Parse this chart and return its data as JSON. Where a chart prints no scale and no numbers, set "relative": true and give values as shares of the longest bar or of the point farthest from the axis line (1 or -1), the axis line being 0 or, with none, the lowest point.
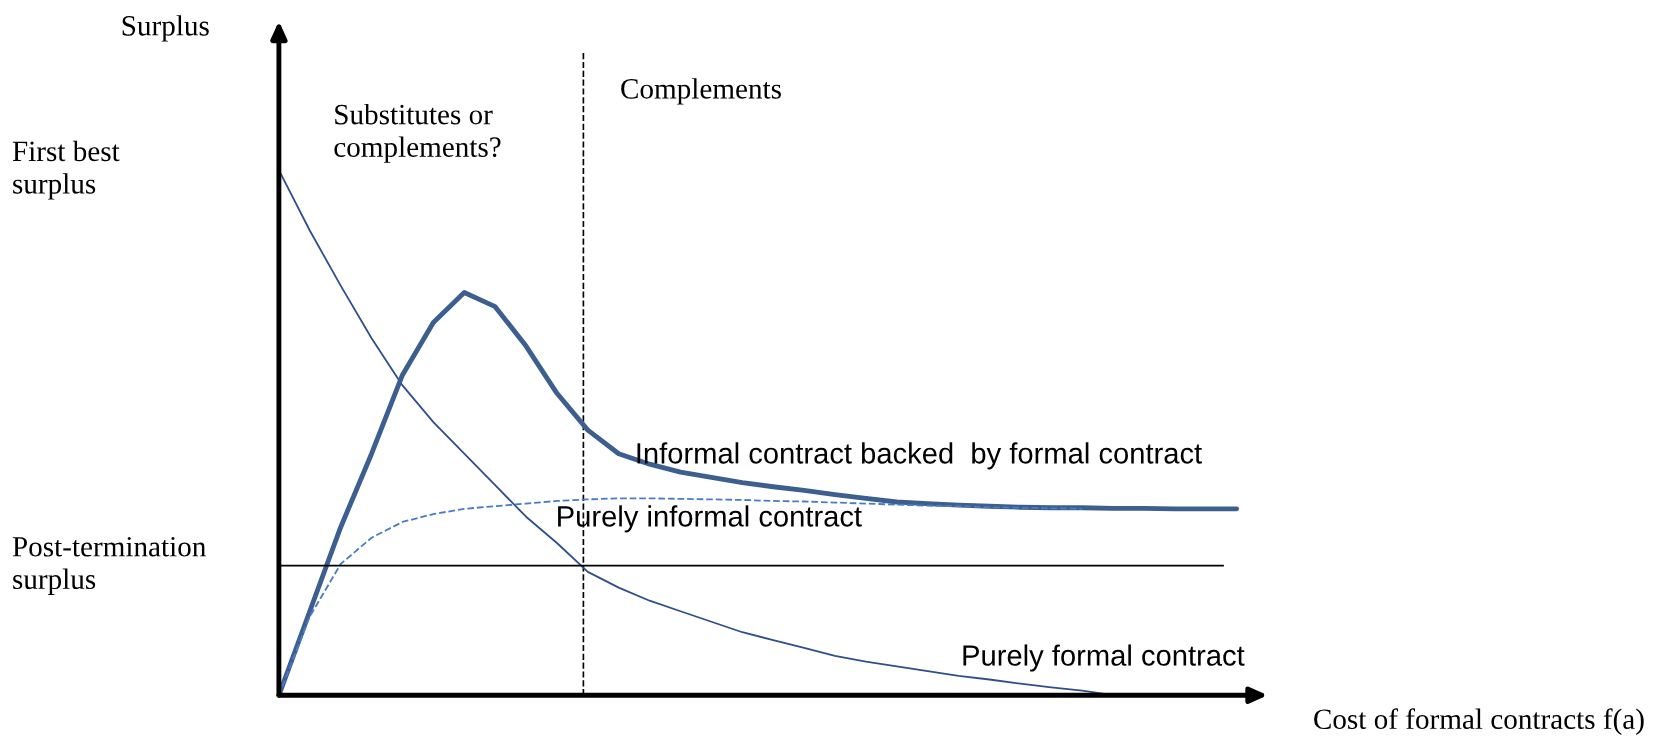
{
  "chart_data": {
    "type": "line",
    "relative": true,
    "xlabel": "Cost of formal contracts f(a)",
    "ylabel": "Surplus",
    "categories": [
      null,
      null,
      null,
      null,
      null,
      null,
      null,
      null,
      null,
      null,
      null,
      null,
      null,
      null,
      null,
      null,
      null,
      null,
      null,
      null,
      null,
      null,
      null,
      null,
      null,
      null,
      null,
      null,
      null,
      null,
      null,
      null,
      null
    ],
    "series": [
      {
        "name": "Purely formal contract",
        "color": "#2f4f8a",
        "line_style": "solid",
        "values": [
          1.0,
          0.885,
          0.78,
          0.68,
          0.59,
          0.52,
          0.46,
          0.4,
          0.34,
          0.29,
          0.235,
          0.205,
          0.18,
          0.16,
          0.14,
          0.12,
          0.105,
          0.09,
          0.075,
          0.064,
          0.055,
          0.046,
          0.037,
          0.03,
          0.022,
          0.015,
          0.009,
          0,
          null,
          null,
          null,
          null,
          null
        ]
      },
      {
        "name": "Informal contract backed  by formal contract",
        "color": "#3d5f8f",
        "line_style": "solid",
        "values": [
          0,
          0.16,
          0.32,
          0.46,
          0.61,
          0.71,
          0.767,
          0.74,
          0.665,
          0.575,
          0.505,
          0.46,
          0.44,
          0.425,
          0.415,
          0.405,
          0.397,
          0.39,
          0.382,
          0.375,
          0.368,
          0.365,
          0.362,
          0.36,
          0.358,
          0.357,
          0.357,
          0.356,
          0.356,
          0.355,
          0.355,
          0.355,
          null
        ]
      },
      {
        "name": "Purely informal contract",
        "color": "#4a7cc4",
        "line_style": "dashed",
        "values": [
          0,
          0.15,
          0.25,
          0.3,
          0.33,
          0.345,
          0.355,
          0.36,
          0.365,
          0.37,
          0.373,
          0.375,
          0.375,
          0.374,
          0.373,
          0.372,
          0.37,
          0.369,
          0.367,
          0.365,
          0.363,
          0.361,
          0.36,
          0.358,
          0.357,
          0.356,
          0.355,
          null,
          null,
          null,
          null,
          null,
          null
        ]
      }
    ],
    "ref_lines": [
      {
        "axis": "y",
        "value": 0.247,
        "label": "Post-termination\nsurplus",
        "color": "#000000",
        "line_style": "solid"
      }
    ],
    "annotations": [
      "First best\nsurplus",
      "Substitutes or\ncomplements?",
      "Complements"
    ]
  }
}
